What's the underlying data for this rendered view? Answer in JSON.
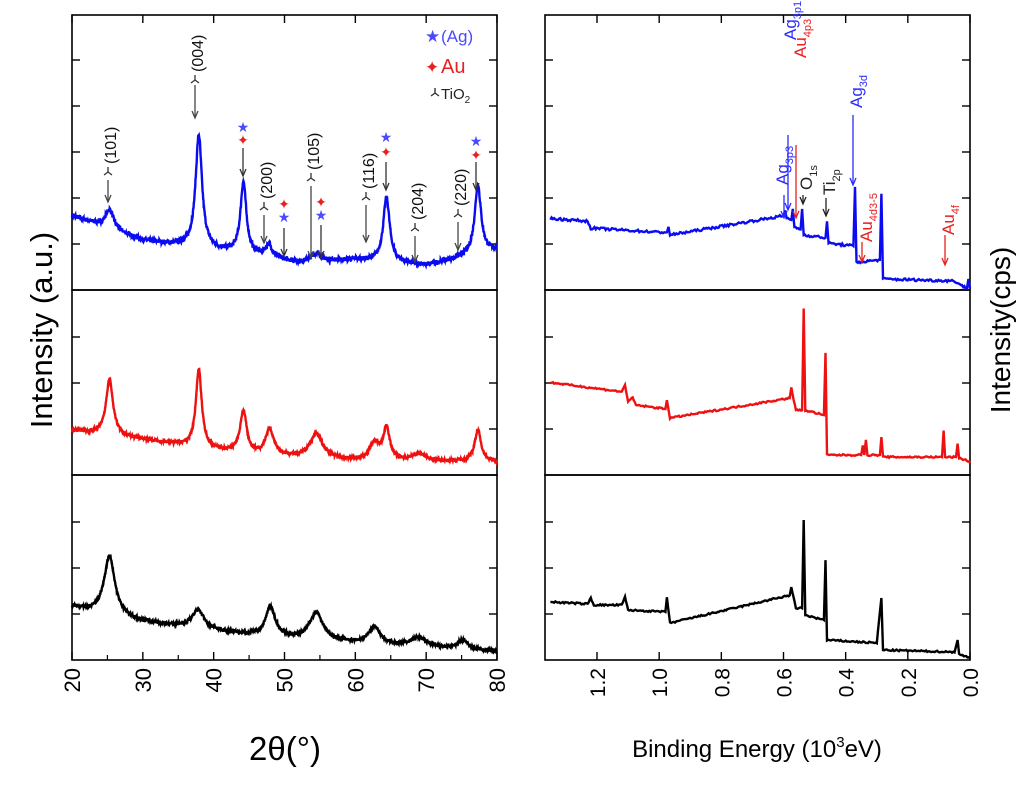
{
  "colors": {
    "ag": "#2b2bff",
    "au": "#e82020",
    "tio2": "#222222",
    "blue_series": "#0b0bef",
    "red_series": "#ee1111",
    "black_series": "#000000"
  },
  "chart_data": [
    {
      "type": "line",
      "panel": "left",
      "xlabel": "2θ(°)",
      "ylabel": "Intensity (a.u.)",
      "xlim": [
        20,
        80
      ],
      "xticks": [
        "20",
        "30",
        "40",
        "50",
        "60",
        "70",
        "80"
      ],
      "stacked_panels": 3,
      "legend": {
        "placement": "top-right",
        "entries": [
          {
            "symbol": "star-icon",
            "label": "(Ag)"
          },
          {
            "symbol": "four-point-star-icon",
            "label": "Au"
          },
          {
            "symbol": "tri-icon",
            "label": "TiO",
            "sub": "2"
          }
        ]
      },
      "annotations": [
        "(101)",
        "(004)",
        "(200)",
        "(105)",
        "(116)",
        "(204)",
        "(220)"
      ],
      "annotation_positions": [
        25.3,
        37.8,
        48.0,
        53.9,
        62.7,
        68.8,
        75.0
      ],
      "metal_peaks": [
        44.2,
        50.0,
        55.0,
        64.4,
        77.3
      ],
      "series": [
        {
          "color": "blue",
          "ylim": [
            0,
            100
          ],
          "baseline": [
            [
              20,
              27
            ],
            [
              30,
              18
            ],
            [
              45,
              12.7
            ],
            [
              52,
              10
            ],
            [
              60,
              11
            ],
            [
              70,
              9
            ],
            [
              80,
              14.5
            ]
          ],
          "peaks": [
            [
              25.3,
              7,
              0.7
            ],
            [
              37.9,
              41,
              0.55
            ],
            [
              44.2,
              26,
              0.5
            ],
            [
              47.8,
              4.5,
              0.6
            ],
            [
              54.5,
              3,
              0.8
            ],
            [
              64.4,
              23.5,
              0.55
            ],
            [
              77.3,
              25,
              0.55
            ]
          ]
        },
        {
          "color": "red",
          "ylim": [
            0,
            100
          ],
          "baseline": [
            [
              20,
              24
            ],
            [
              30,
              19
            ],
            [
              45,
              11
            ],
            [
              60,
              8
            ],
            [
              80,
              7
            ]
          ],
          "peaks": [
            [
              25.3,
              30,
              0.6
            ],
            [
              37.9,
              42,
              0.5
            ],
            [
              44.2,
              23,
              0.55
            ],
            [
              47.9,
              14,
              0.7
            ],
            [
              54.5,
              13,
              1.0
            ],
            [
              62.7,
              9,
              0.8
            ],
            [
              64.4,
              17,
              0.55
            ],
            [
              69.0,
              4,
              1.0
            ],
            [
              77.3,
              17,
              0.55
            ]
          ]
        },
        {
          "color": "black",
          "ylim": [
            0,
            100
          ],
          "baseline": [
            [
              20,
              28.6
            ],
            [
              30,
              20.5
            ],
            [
              45,
              13.5
            ],
            [
              60,
              9
            ],
            [
              80,
              4.3
            ]
          ],
          "peaks": [
            [
              25.3,
              32,
              0.9
            ],
            [
              37.8,
              10,
              1.0
            ],
            [
              48.0,
              16,
              0.8
            ],
            [
              54.5,
              15,
              1.1
            ],
            [
              62.7,
              9.5,
              1.0
            ],
            [
              69.0,
              5,
              1.3
            ],
            [
              75.2,
              5,
              1.0
            ]
          ]
        }
      ]
    },
    {
      "type": "line",
      "panel": "right",
      "xlabel": "Binding Energy (10",
      "xlabel_sup": "3",
      "xlabel_end": "eV)",
      "ylabel": "Intensity(cps)",
      "xlim": [
        1.35,
        0.0
      ],
      "xticks": [
        "1.2",
        "1.0",
        "0.8",
        "0.6",
        "0.4",
        "0.2",
        "0.0"
      ],
      "xtick_values": [
        1.2,
        1.0,
        0.8,
        0.6,
        0.4,
        0.2,
        0.0
      ],
      "stacked_panels": 3,
      "annotations": [
        {
          "main": "Ag",
          "sub": "3p3",
          "color": "ag"
        },
        {
          "main": "Ag",
          "sub": "3p1",
          "color": "ag"
        },
        {
          "main": "Au",
          "sub": "4p3",
          "color": "au"
        },
        {
          "main": "O",
          "sub": "1s",
          "color": "tio2"
        },
        {
          "main": "Ti",
          "sub": "2p",
          "color": "tio2"
        },
        {
          "main": "Ag",
          "sub": "3d",
          "color": "ag"
        },
        {
          "main": "Au",
          "sub": "4d3-5",
          "color": "au"
        },
        {
          "main": "Au",
          "sub": "4f",
          "color": "au"
        }
      ],
      "series": [
        {
          "color": "blue",
          "ylim": [
            0,
            100
          ],
          "points": [
            [
              1.35,
              26
            ],
            [
              1.23,
              25
            ],
            [
              1.22,
              22.5
            ],
            [
              1.0,
              21
            ],
            [
              0.975,
              21
            ],
            [
              0.97,
              23
            ],
            [
              0.965,
              20
            ],
            [
              0.6,
              27
            ],
            [
              0.595,
              29
            ],
            [
              0.59,
              26
            ],
            [
              0.575,
              25.5
            ],
            [
              0.57,
              29.5
            ],
            [
              0.565,
              23
            ],
            [
              0.545,
              22
            ],
            [
              0.54,
              29.5
            ],
            [
              0.535,
              20
            ],
            [
              0.465,
              19
            ],
            [
              0.46,
              25
            ],
            [
              0.455,
              17
            ],
            [
              0.375,
              16
            ],
            [
              0.37,
              37.5
            ],
            [
              0.365,
              10
            ],
            [
              0.29,
              11
            ],
            [
              0.285,
              35
            ],
            [
              0.28,
              4
            ],
            [
              0.05,
              3.3
            ],
            [
              0.01,
              0.5
            ],
            [
              0.005,
              4
            ],
            [
              0,
              0.5
            ]
          ]
        },
        {
          "color": "red",
          "ylim": [
            0,
            100
          ],
          "points": [
            [
              1.35,
              50
            ],
            [
              1.12,
              45
            ],
            [
              1.11,
              48.6
            ],
            [
              1.1,
              40
            ],
            [
              1.085,
              41.6
            ],
            [
              1.075,
              37.8
            ],
            [
              0.98,
              35.7
            ],
            [
              0.975,
              40.5
            ],
            [
              0.965,
              30.8
            ],
            [
              0.58,
              41.6
            ],
            [
              0.575,
              47
            ],
            [
              0.56,
              35
            ],
            [
              0.54,
              35
            ],
            [
              0.535,
              90
            ],
            [
              0.53,
              35
            ],
            [
              0.47,
              32.4
            ],
            [
              0.465,
              66
            ],
            [
              0.46,
              10.8
            ],
            [
              0.35,
              10.8
            ],
            [
              0.345,
              16
            ],
            [
              0.34,
              10.8
            ],
            [
              0.335,
              19
            ],
            [
              0.33,
              10.8
            ],
            [
              0.29,
              10.8
            ],
            [
              0.285,
              20.5
            ],
            [
              0.28,
              9.7
            ],
            [
              0.09,
              9.7
            ],
            [
              0.085,
              24
            ],
            [
              0.08,
              9.7
            ],
            [
              0.045,
              9.7
            ],
            [
              0.04,
              17
            ],
            [
              0.035,
              9
            ],
            [
              0.01,
              8
            ],
            [
              0,
              6.5
            ]
          ]
        },
        {
          "color": "black",
          "ylim": [
            0,
            100
          ],
          "points": [
            [
              1.35,
              31.4
            ],
            [
              1.23,
              30.3
            ],
            [
              1.22,
              33.5
            ],
            [
              1.21,
              29.7
            ],
            [
              1.12,
              29.7
            ],
            [
              1.11,
              34
            ],
            [
              1.1,
              27
            ],
            [
              0.98,
              26
            ],
            [
              0.975,
              33.5
            ],
            [
              0.965,
              20
            ],
            [
              0.58,
              35
            ],
            [
              0.575,
              39
            ],
            [
              0.56,
              28
            ],
            [
              0.54,
              28
            ],
            [
              0.535,
              75.7
            ],
            [
              0.53,
              24.3
            ],
            [
              0.47,
              21.6
            ],
            [
              0.465,
              54
            ],
            [
              0.46,
              10.8
            ],
            [
              0.3,
              9.2
            ],
            [
              0.285,
              33.5
            ],
            [
              0.28,
              5.4
            ],
            [
              0.05,
              4.3
            ],
            [
              0.04,
              10.8
            ],
            [
              0.035,
              3
            ],
            [
              0.02,
              2.2
            ],
            [
              0,
              1
            ]
          ]
        }
      ]
    }
  ]
}
